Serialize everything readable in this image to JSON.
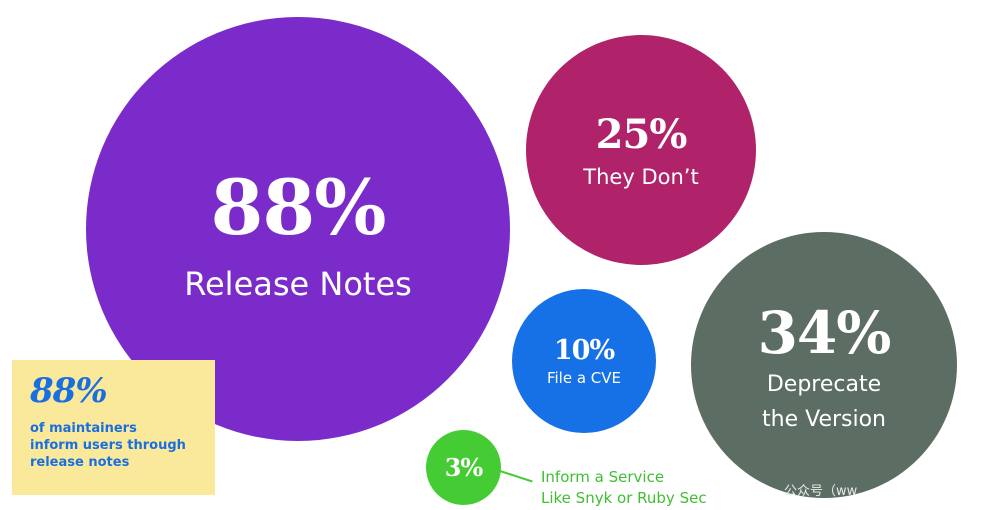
{
  "chart_data": {
    "type": "bubble",
    "series": [
      {
        "percent": "88%",
        "label": "Release Notes",
        "value": 88,
        "color": "#7b2bc9"
      },
      {
        "percent": "25%",
        "label": "They Don’t",
        "value": 25,
        "color": "#b0236a"
      },
      {
        "percent": "10%",
        "label": "File a CVE",
        "value": 10,
        "color": "#1771e6"
      },
      {
        "percent": "34%",
        "label": "Deprecate the Version",
        "label_lines": [
          "Deprecate",
          "the Version"
        ],
        "value": 34,
        "color": "#5c6e63"
      },
      {
        "percent": "3%",
        "label": "Inform a Service Like Snyk or Ruby Sec",
        "label_lines": [
          "Inform a Service",
          "Like Snyk or Ruby Sec"
        ],
        "value": 3,
        "color": "#45cc35"
      }
    ]
  },
  "callout": {
    "percent": "88%",
    "text_lines": [
      "of maintainers",
      "inform users through",
      "release notes"
    ],
    "background": "#fbe99b",
    "text_color": "#1a6fe0"
  },
  "watermark": "公众号（ww"
}
